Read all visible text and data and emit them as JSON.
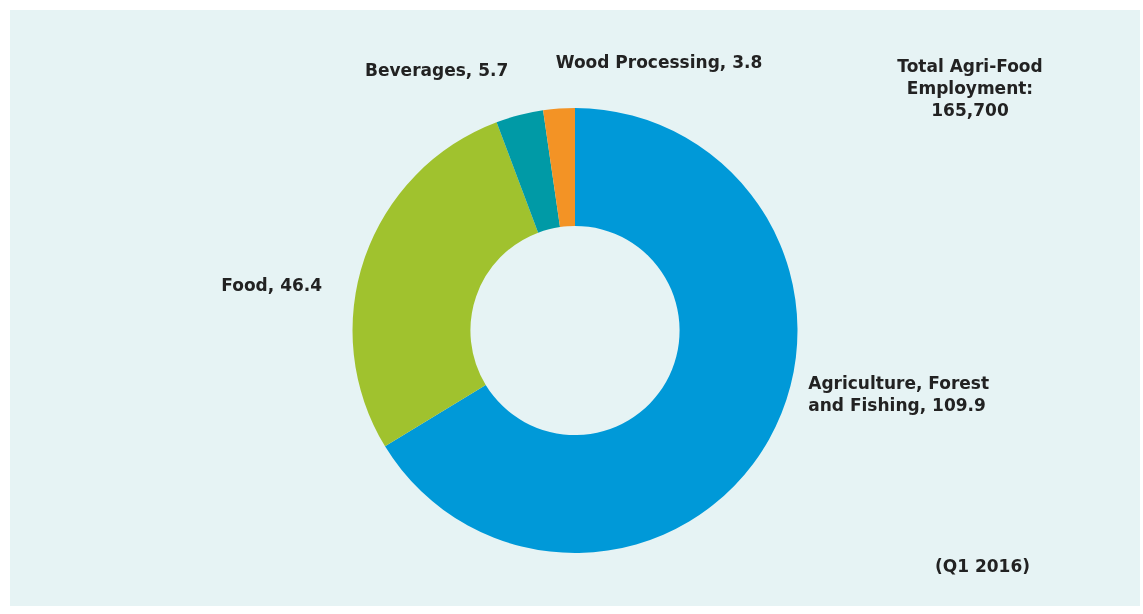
{
  "chart_data": {
    "type": "donut",
    "categories": [
      "Agriculture, Forest and Fishing",
      "Food",
      "Beverages",
      "Wood Processing"
    ],
    "values": [
      109.9,
      46.4,
      5.7,
      3.8
    ],
    "colors": [
      "#0099d8",
      "#a0c22e",
      "#009aa6",
      "#f39325"
    ],
    "value_labels": [
      ", 109.9",
      ", 46.4",
      ", 5.7",
      ", 3.8"
    ],
    "legend": false,
    "annotations": [
      "Total Agri-Food Employment: 165,700",
      "(Q1 2016)"
    ]
  }
}
